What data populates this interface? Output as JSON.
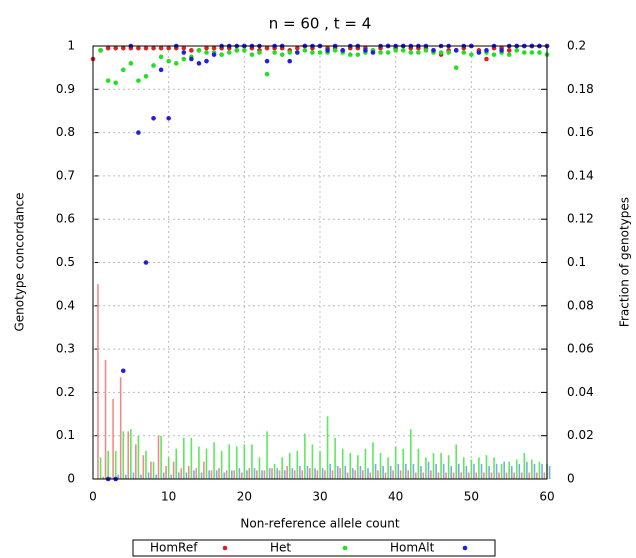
{
  "chart_data": {
    "type": "scatter",
    "title": "n = 60 , t = 4",
    "xlabel": "Non-reference allele count",
    "ylabel": "Genotype concordance",
    "y2label": "Fraction of genotypes",
    "x": [
      0,
      1,
      2,
      3,
      4,
      5,
      6,
      7,
      8,
      9,
      10,
      11,
      12,
      13,
      14,
      15,
      16,
      17,
      18,
      19,
      20,
      21,
      22,
      23,
      24,
      25,
      26,
      27,
      28,
      29,
      30,
      31,
      32,
      33,
      34,
      35,
      36,
      37,
      38,
      39,
      40,
      41,
      42,
      43,
      44,
      45,
      46,
      47,
      48,
      49,
      50,
      51,
      52,
      53,
      54,
      55,
      56,
      57,
      58,
      59,
      60
    ],
    "xlim": [
      0,
      60
    ],
    "xticks": [
      0,
      10,
      20,
      30,
      40,
      50,
      60
    ],
    "ylim": [
      0,
      1
    ],
    "yticks": [
      0,
      0.1,
      0.2,
      0.3,
      0.4,
      0.5,
      0.6,
      0.7,
      0.8,
      0.9,
      1
    ],
    "y2lim": [
      0,
      0.2
    ],
    "y2ticks": [
      0,
      0.02,
      0.04,
      0.06,
      0.08,
      0.1,
      0.12,
      0.14,
      0.16,
      0.18,
      0.2
    ],
    "grid": true,
    "series": [
      {
        "name": "HomRef",
        "type": "scatter",
        "color": "#e02020",
        "values": [
          0.97,
          0.99,
          0.995,
          0.995,
          0.995,
          0.995,
          0.995,
          0.995,
          0.995,
          0.995,
          0.995,
          0.995,
          0.995,
          0.99,
          0.99,
          0.995,
          0.995,
          0.995,
          0.995,
          0.99,
          1,
          0.995,
          0.99,
          0.995,
          0.995,
          0.995,
          0.99,
          0.995,
          1,
          0.995,
          1,
          0.995,
          0.995,
          0.99,
          0.995,
          0.995,
          0.995,
          0.99,
          0.995,
          1,
          0.995,
          1,
          0.995,
          0.995,
          0.995,
          0.99,
          0.98,
          0.99,
          0.99,
          0.995,
          1,
          0.99,
          0.97,
          0.995,
          0.995,
          0.99,
          1,
          1,
          1,
          1,
          1
        ]
      },
      {
        "name": "Het",
        "type": "scatter",
        "color": "#20e020",
        "values": [
          null,
          0.99,
          0.92,
          0.915,
          0.945,
          0.96,
          0.92,
          0.93,
          0.955,
          0.975,
          0.965,
          0.96,
          0.97,
          0.975,
          0.99,
          0.985,
          0.985,
          0.98,
          0.985,
          0.99,
          0.99,
          0.98,
          0.985,
          0.935,
          0.985,
          0.98,
          0.985,
          0.985,
          0.99,
          0.985,
          0.985,
          0.985,
          0.99,
          0.985,
          0.98,
          0.98,
          0.985,
          0.99,
          0.985,
          0.985,
          0.99,
          0.99,
          0.985,
          0.985,
          0.99,
          0.985,
          0.985,
          0.985,
          0.95,
          0.985,
          0.98,
          0.985,
          0.985,
          0.98,
          0.985,
          0.98,
          0.99,
          0.985,
          0.985,
          0.985,
          0.98
        ]
      },
      {
        "name": "HomAlt",
        "type": "scatter",
        "color": "#2020e0",
        "values": [
          null,
          null,
          0,
          0,
          0.25,
          1,
          0.8,
          0.5,
          0.833,
          0.945,
          0.833,
          1,
          0.985,
          0.97,
          0.96,
          0.965,
          0.98,
          1,
          1,
          1,
          1,
          1,
          1,
          0.965,
          1,
          1,
          0.965,
          0.985,
          1,
          1,
          1,
          0.99,
          1,
          0.99,
          1,
          1,
          0.99,
          0.985,
          1,
          1,
          1,
          1,
          1,
          1,
          1,
          0.99,
          1,
          1,
          0.99,
          1,
          1,
          0.985,
          0.99,
          1,
          0.99,
          1,
          1,
          1,
          1,
          1,
          1
        ]
      },
      {
        "type": "bar",
        "axis": "y2",
        "color": "#f28a8a",
        "values": [
          0,
          0.09,
          0.055,
          0.037,
          0.047,
          0.022,
          0.016,
          0.011,
          0.008,
          0.02,
          0.006,
          0.008,
          0.005,
          0.006,
          0.005,
          0.008,
          0.004,
          0.005,
          0.004,
          0.004,
          0.003,
          0.005,
          0.004,
          0.004,
          0.005,
          0.004,
          0.006,
          0.004,
          0.004,
          0.005,
          0.004,
          0.004,
          0.004,
          0.005,
          0.003,
          0.004,
          0.004,
          0.003,
          0.004,
          0.003,
          0.004,
          0.004,
          0.004,
          0.003,
          0.003,
          0.004,
          0.003,
          0.003,
          0.003,
          0.003,
          0.003,
          0.003,
          0.003,
          0.003,
          0.003,
          0.003,
          0.003,
          0.003,
          0.003,
          0.003,
          0.003
        ]
      },
      {
        "type": "bar",
        "axis": "y2",
        "color": "#5ee85e",
        "values": [
          0,
          0.01,
          0.013,
          0.013,
          0.022,
          0.023,
          0.02,
          0.013,
          0.008,
          0.02,
          0.01,
          0.014,
          0.019,
          0.019,
          0.015,
          0.014,
          0.017,
          0.013,
          0.016,
          0.015,
          0.016,
          0.016,
          0.01,
          0.022,
          0.007,
          0.01,
          0.012,
          0.013,
          0.021,
          0.016,
          0.013,
          0.029,
          0.019,
          0.014,
          0.012,
          0.011,
          0.014,
          0.017,
          0.012,
          0.01,
          0.015,
          0.014,
          0.023,
          0.014,
          0.01,
          0.012,
          0.012,
          0.011,
          0.016,
          0.01,
          0.009,
          0.01,
          0.011,
          0.01,
          0.007,
          0.008,
          0.009,
          0.012,
          0.009,
          0.008,
          0.007
        ]
      },
      {
        "type": "bar",
        "axis": "y2",
        "color": "#7fa8e8",
        "values": [
          0,
          0.001,
          0.001,
          0.002,
          0.002,
          0.003,
          0.002,
          0.003,
          0.002,
          0.003,
          0.002,
          0.003,
          0.003,
          0.004,
          0.003,
          0.004,
          0.004,
          0.003,
          0.004,
          0.005,
          0.004,
          0.005,
          0.004,
          0.005,
          0.005,
          0.004,
          0.005,
          0.006,
          0.006,
          0.005,
          0.005,
          0.007,
          0.006,
          0.006,
          0.005,
          0.006,
          0.005,
          0.007,
          0.006,
          0.006,
          0.007,
          0.007,
          0.007,
          0.006,
          0.008,
          0.007,
          0.007,
          0.006,
          0.007,
          0.006,
          0.007,
          0.007,
          0.006,
          0.007,
          0.008,
          0.006,
          0.007,
          0.008,
          0.007,
          0.007,
          0.006
        ]
      }
    ]
  }
}
